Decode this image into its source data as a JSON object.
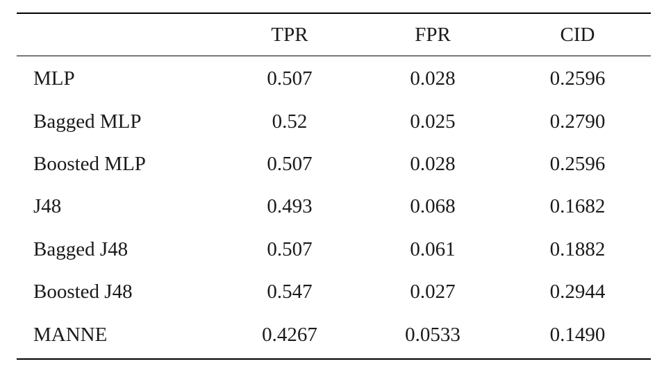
{
  "table": {
    "headers": [
      "",
      "TPR",
      "FPR",
      "CID"
    ],
    "rows": [
      [
        "MLP",
        "0.507",
        "0.028",
        "0.2596"
      ],
      [
        "Bagged MLP",
        "0.52",
        "0.025",
        "0.2790"
      ],
      [
        "Boosted MLP",
        "0.507",
        "0.028",
        "0.2596"
      ],
      [
        "J48",
        "0.493",
        "0.068",
        "0.1682"
      ],
      [
        "Bagged J48",
        "0.507",
        "0.061",
        "0.1882"
      ],
      [
        "Boosted J48",
        "0.547",
        "0.027",
        "0.2944"
      ],
      [
        "MANNE",
        "0.4267",
        "0.0533",
        "0.1490"
      ]
    ]
  }
}
